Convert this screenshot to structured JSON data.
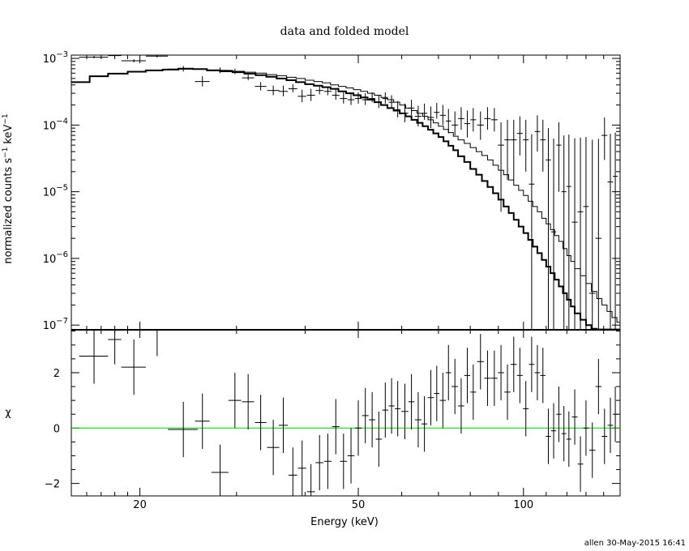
{
  "chart_data": [
    {
      "type": "scatter",
      "panel": "top",
      "title": "data and folded model",
      "xlabel": "",
      "ylabel": "normalized counts s",
      "ylabel_sup": "−1",
      "ylabel_unit": "keV",
      "ylabel_unit_sup": "−1",
      "xscale": "log",
      "yscale": "log",
      "xlim": [
        15,
        150
      ],
      "ylim": [
        8.5e-08,
        0.00112
      ],
      "ytick_values": [
        1e-07,
        1e-06,
        1e-05,
        0.0001,
        0.001
      ],
      "ytick_mant": [
        "10",
        "10",
        "10",
        "10",
        "10"
      ],
      "ytick_exp": [
        "−7",
        "−6",
        "−5",
        "−4",
        "−3"
      ],
      "series": [
        {
          "kind": "data",
          "x": [
            16.5,
            18.0,
            19.5,
            21.5,
            24.0,
            26.0,
            28.0,
            29.8,
            31.5,
            33.2,
            35.0,
            36.5,
            38.0,
            39.5,
            41.0,
            42.5,
            44.0,
            45.5,
            47.0,
            48.5,
            50.0,
            51.5,
            53.0,
            54.5,
            56.0,
            57.5,
            59.0,
            60.8,
            62.5,
            64.3,
            66.0,
            67.8,
            69.5,
            71.3,
            73.0,
            75.0,
            77.0,
            79.0,
            81.0,
            83.5,
            86.0,
            88.5,
            91.0,
            93.5,
            96.0,
            98.5,
            101.0,
            103.5,
            106.0,
            108.5,
            111.0,
            113.5,
            116.0,
            118.5,
            121.0,
            124.0,
            127.0,
            130.0,
            133.5,
            137.0,
            140.5,
            144.0,
            147.0
          ],
          "xerr": [
            1.0,
            0.5,
            1.0,
            1.0,
            1.5,
            0.8,
            1.0,
            0.8,
            0.8,
            0.8,
            0.9,
            0.7,
            0.7,
            0.7,
            0.7,
            0.7,
            0.7,
            0.7,
            0.7,
            0.7,
            0.7,
            0.7,
            0.7,
            0.7,
            0.7,
            0.7,
            0.7,
            0.9,
            0.8,
            0.9,
            0.8,
            0.9,
            0.8,
            0.9,
            0.8,
            1.0,
            1.0,
            1.0,
            1.0,
            1.2,
            1.2,
            1.2,
            1.2,
            1.2,
            1.2,
            1.2,
            1.2,
            1.2,
            1.2,
            1.2,
            1.2,
            1.2,
            1.2,
            1.2,
            1.2,
            1.5,
            1.5,
            1.5,
            1.7,
            1.7,
            1.7,
            1.7,
            1.5
          ],
          "y": [
            0.00104,
            0.0011,
            0.00092,
            0.00108,
            0.00069,
            0.00045,
            0.00066,
            0.00063,
            0.00051,
            0.00038,
            0.00033,
            0.00032,
            0.00035,
            0.00027,
            0.00028,
            0.00033,
            0.00032,
            0.00028,
            0.00025,
            0.00024,
            0.00025,
            0.00024,
            0.00025,
            0.00022,
            0.00025,
            0.00022,
            0.00017,
            0.00015,
            0.00018,
            0.000135,
            0.00015,
            0.00013,
            0.000155,
            0.00014,
            0.000115,
            0.0001,
            0.000125,
            0.000105,
            0.00012,
            0.0001,
            0.000125,
            0.00012,
            5e-05,
            6e-05,
            6e-05,
            7.5e-05,
            6e-05,
            1.3e-05,
            8e-05,
            6e-05,
            3e-05,
            2.5e-06,
            5e-05,
            1e-05,
            1.2e-05,
            3.5e-06,
            5e-06,
            6e-06,
            3e-07,
            2e-06,
            7e-05,
            1.4e-05,
            1.7e-05
          ],
          "ylo": [
            4e-05,
            5e-05,
            5e-05,
            5e-05,
            5.5e-05,
            7e-05,
            6e-05,
            5e-05,
            4e-05,
            5e-05,
            5e-05,
            5e-05,
            4e-05,
            5e-05,
            5e-05,
            4e-05,
            4e-05,
            4e-05,
            4e-05,
            4e-05,
            4e-05,
            4e-05,
            3e-05,
            4e-05,
            4e-05,
            4e-05,
            4e-05,
            4e-05,
            4e-05,
            4e-05,
            3e-05,
            4e-05,
            3e-05,
            4e-05,
            4e-05,
            3e-05,
            4e-05,
            4e-05,
            4e-05,
            4e-05,
            4e-05,
            4e-05,
            4.5e-05,
            4.5e-05,
            4.5e-05,
            4e-05,
            4e-05,
            4e-05,
            4e-05,
            4e-05,
            4e-05,
            4e-05,
            4e-05,
            4e-05,
            4e-05,
            4e-05,
            4e-05,
            4e-05,
            4e-05,
            4e-05,
            4e-05,
            4e-05,
            4e-05
          ],
          "yhi": [
            5e-05,
            5e-05,
            5e-05,
            5e-05,
            8e-05,
            9e-05,
            7e-05,
            7e-05,
            6e-05,
            6e-05,
            6e-05,
            7e-05,
            6e-05,
            7e-05,
            7e-05,
            6e-05,
            6e-05,
            6e-05,
            6e-05,
            6e-05,
            6e-05,
            6e-05,
            6e-05,
            6e-05,
            6e-05,
            6e-05,
            6e-05,
            6e-05,
            6e-05,
            6e-05,
            6e-05,
            6e-05,
            6e-05,
            6e-05,
            6e-05,
            6e-05,
            6e-05,
            6e-05,
            6e-05,
            6e-05,
            6e-05,
            6e-05,
            6e-05,
            6e-05,
            6e-05,
            6e-05,
            6e-05,
            6e-05,
            6e-05,
            6e-05,
            6e-05,
            6e-05,
            6e-05,
            6e-05,
            6e-05,
            6e-05,
            6e-05,
            6e-05,
            6e-05,
            6e-05,
            6e-05,
            6e-05,
            6e-05
          ]
        },
        {
          "kind": "model",
          "edges": [
            15,
            16.2,
            17.5,
            19.0,
            20.5,
            22.0,
            23.5,
            25.0,
            26.5,
            28.0,
            29.5,
            31.0,
            32.5,
            34.0,
            35.5,
            37.0,
            38.5,
            40.0,
            41.5,
            43.0,
            44.5,
            46.0,
            47.5,
            49.0,
            50.5,
            52.0,
            53.5,
            55.0,
            56.5,
            58.0,
            59.5,
            61.0,
            62.5,
            64.0,
            65.5,
            67.0,
            68.5,
            70.0,
            71.5,
            73.0,
            74.5,
            76.0,
            78.0,
            80.0,
            82.0,
            84.0,
            86.0,
            88.0,
            90.0,
            92.0,
            94.0,
            96.0,
            98.0,
            100.0,
            102.0,
            104.0,
            106.0,
            108.0,
            110.0,
            112.0,
            114.0,
            116.0,
            118.0,
            120.0,
            122.0,
            124.0,
            127.0,
            130.0,
            133.0,
            136.0,
            139.0,
            142.0,
            145.0,
            148.0,
            150.0
          ],
          "y": [
            0.00044,
            0.00054,
            0.00059,
            0.00063,
            0.00066,
            0.00068,
            0.0007,
            0.00069,
            0.00066,
            0.00064,
            0.00062,
            0.00059,
            0.00056,
            0.00053,
            0.0005,
            0.00047,
            0.00044,
            0.00041,
            0.00039,
            0.00037,
            0.00035,
            0.00032,
            0.0003,
            0.00028,
            0.00026,
            0.00024,
            0.00022,
            0.0002,
            0.00018,
            0.000165,
            0.00015,
            0.000135,
            0.00012,
            0.000108,
            9.6e-05,
            8.5e-05,
            7.5e-05,
            6.6e-05,
            5.7e-05,
            4.9e-05,
            4.2e-05,
            3.4e-05,
            2.8e-05,
            2.2e-05,
            1.8e-05,
            1.45e-05,
            1.18e-05,
            9.5e-06,
            7.6e-06,
            6e-06,
            4.8e-06,
            3.8e-06,
            3e-06,
            2.4e-06,
            1.9e-06,
            1.5e-06,
            1.2e-06,
            9.5e-07,
            7.5e-07,
            6e-07,
            4.8e-07,
            3.8e-07,
            3e-07,
            2.4e-07,
            1.9e-07,
            1.5e-07,
            1.2e-07,
            1e-07,
            8.8e-08,
            8.6e-08,
            8.6e-08,
            8.6e-08,
            8.6e-08,
            8.6e-08
          ],
          "y_upper": [
            0.00044,
            0.00054,
            0.00059,
            0.00063,
            0.00066,
            0.00068,
            0.0007,
            0.00069,
            0.00067,
            0.00066,
            0.00064,
            0.00062,
            0.0006,
            0.00057,
            0.00055,
            0.00052,
            0.0005,
            0.00047,
            0.00045,
            0.00043,
            0.0004,
            0.00038,
            0.00036,
            0.00034,
            0.00032,
            0.0003,
            0.00028,
            0.00026,
            0.00024,
            0.00022,
            0.0002,
            0.00018,
            0.000165,
            0.00015,
            0.000135,
            0.00012,
            0.000108,
            9.6e-05,
            8.6e-05,
            7.7e-05,
            6.8e-05,
            6e-05,
            5.3e-05,
            4.6e-05,
            4e-05,
            3.5e-05,
            3e-05,
            2.5e-05,
            2.1e-05,
            1.8e-05,
            1.5e-05,
            1.25e-05,
            1.05e-05,
            8.8e-06,
            7.2e-06,
            6e-06,
            5e-06,
            4e-06,
            3.3e-06,
            2.7e-06,
            2.2e-06,
            1.8e-06,
            1.4e-06,
            1.1e-06,
            9e-07,
            7e-07,
            5.5e-07,
            4.2e-07,
            3.2e-07,
            2.5e-07,
            2e-07,
            1.6e-07,
            1.3e-07,
            1.1e-07
          ]
        }
      ]
    },
    {
      "type": "scatter",
      "panel": "bottom",
      "xlabel": "Energy (keV)",
      "ylabel": "χ",
      "xscale": "log",
      "xlim": [
        15,
        150
      ],
      "ylim": [
        -2.45,
        3.55
      ],
      "xticks": [
        20,
        50,
        100
      ],
      "xtick_labels": [
        "20",
        "50",
        "100"
      ],
      "yticks": [
        -2,
        0,
        2
      ],
      "ytick_labels": [
        "−2",
        "0",
        "2"
      ],
      "zero_line_color": "#00cc00",
      "residuals": {
        "x": [
          16.5,
          18.0,
          19.5,
          21.5,
          24.0,
          26.0,
          28.0,
          29.8,
          31.5,
          33.2,
          35.0,
          36.5,
          38.0,
          39.5,
          41.0,
          42.5,
          44.0,
          45.5,
          47.0,
          48.5,
          50.0,
          51.5,
          53.0,
          54.5,
          56.0,
          57.5,
          59.0,
          60.8,
          62.5,
          64.3,
          66.0,
          67.8,
          69.5,
          71.3,
          73.0,
          75.0,
          77.0,
          79.0,
          81.0,
          83.5,
          86.0,
          88.5,
          91.0,
          93.5,
          96.0,
          98.5,
          101.0,
          103.5,
          106.0,
          108.5,
          111.0,
          113.5,
          116.0,
          118.5,
          121.0,
          124.0,
          127.0,
          130.0,
          133.5,
          137.0,
          140.5,
          144.0,
          147.0
        ],
        "xerr": [
          1.0,
          0.5,
          1.0,
          1.0,
          1.5,
          0.8,
          1.0,
          0.8,
          0.8,
          0.8,
          0.9,
          0.7,
          0.7,
          0.7,
          0.7,
          0.7,
          0.7,
          0.7,
          0.7,
          0.7,
          0.7,
          0.7,
          0.7,
          0.7,
          0.7,
          0.7,
          0.7,
          0.9,
          0.8,
          0.9,
          0.8,
          0.9,
          0.8,
          0.9,
          0.8,
          1.0,
          1.0,
          1.0,
          1.0,
          1.2,
          1.2,
          1.2,
          1.2,
          1.2,
          1.2,
          1.2,
          1.2,
          1.2,
          1.2,
          1.2,
          1.2,
          1.2,
          1.2,
          1.2,
          1.2,
          1.5,
          1.5,
          1.5,
          1.7,
          1.7,
          1.7,
          1.7,
          1.5
        ],
        "y": [
          2.6,
          3.2,
          2.2,
          3.6,
          -0.05,
          0.25,
          -1.6,
          1.0,
          0.95,
          0.2,
          -0.7,
          0.1,
          -1.7,
          -1.45,
          -2.3,
          -1.25,
          -1.2,
          0.05,
          -1.2,
          -1.0,
          0.0,
          0.45,
          0.3,
          -0.4,
          0.65,
          0.8,
          0.7,
          0.6,
          0.95,
          0.3,
          0.15,
          1.1,
          1.25,
          1.0,
          2.0,
          1.5,
          0.8,
          1.9,
          1.3,
          2.4,
          1.8,
          1.8,
          2.0,
          1.3,
          2.3,
          1.9,
          0.7,
          2.3,
          2.0,
          1.9,
          -0.3,
          -0.1,
          0.5,
          -0.2,
          -0.4,
          0.4,
          -1.3,
          0.0,
          -0.8,
          1.5,
          -0.3,
          0.1,
          0.5
        ],
        "yerr": [
          1.0,
          0.9,
          1.0,
          1.0,
          1.0,
          1.0,
          1.0,
          1.0,
          1.0,
          1.0,
          1.0,
          1.0,
          1.0,
          1.0,
          1.0,
          1.0,
          1.0,
          1.0,
          1.0,
          1.0,
          1.0,
          1.0,
          1.0,
          1.0,
          1.0,
          1.0,
          1.0,
          1.0,
          1.0,
          1.0,
          1.0,
          1.0,
          1.0,
          1.0,
          1.0,
          1.0,
          1.0,
          1.0,
          1.0,
          1.0,
          1.0,
          1.0,
          1.0,
          1.0,
          1.0,
          1.0,
          1.0,
          1.0,
          1.0,
          1.0,
          1.0,
          1.0,
          1.0,
          1.0,
          1.0,
          1.0,
          1.0,
          1.0,
          1.0,
          1.0,
          1.0,
          1.0,
          1.0
        ]
      }
    }
  ],
  "footer": {
    "stamp": "allen 30-May-2015 16:41"
  }
}
